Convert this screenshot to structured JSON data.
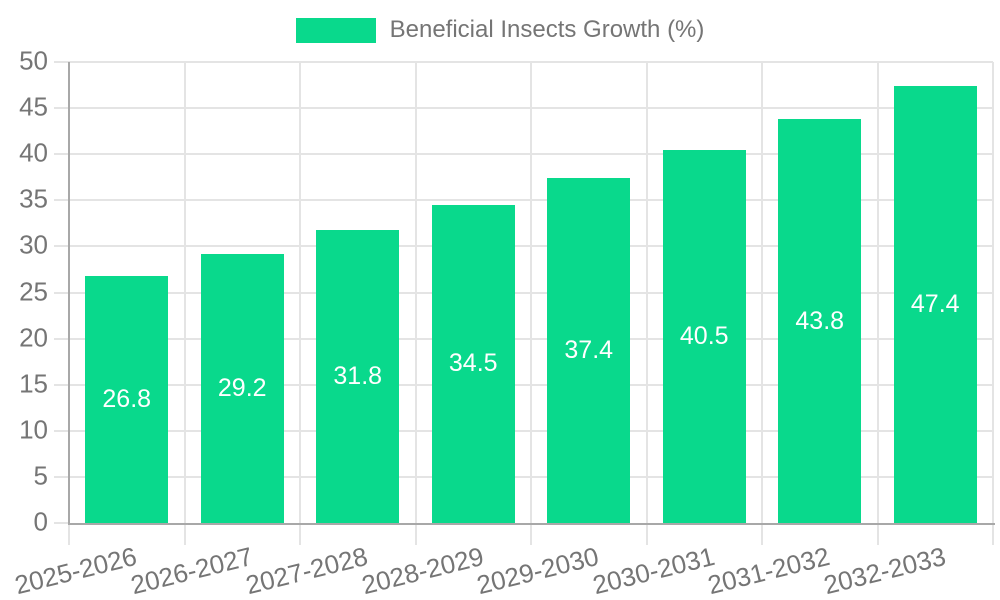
{
  "chart_data": {
    "type": "bar",
    "title": "Beneficial Insects Growth (%)",
    "legend_label": "Beneficial Insects Growth (%)",
    "legend_position": "top-center",
    "categories": [
      "2025-2026",
      "2026-2027",
      "2027-2028",
      "2028-2029",
      "2029-2030",
      "2030-2031",
      "2031-2032",
      "2032-2033"
    ],
    "values": [
      26.8,
      29.2,
      31.8,
      34.5,
      37.4,
      40.5,
      43.8,
      47.4
    ],
    "xlabel": "",
    "ylabel": "",
    "ylim": [
      0,
      50
    ],
    "ytick_step": 5,
    "ytick_labels": [
      "0",
      "5",
      "10",
      "15",
      "20",
      "25",
      "30",
      "35",
      "40",
      "45",
      "50"
    ],
    "grid": true,
    "bar_color": "#09d98c",
    "value_label_color": "#ffffff",
    "grid_color": "#e4e4e4",
    "axis_color": "#a8a8a8",
    "text_color": "#757575",
    "background_color": "#ffffff"
  }
}
